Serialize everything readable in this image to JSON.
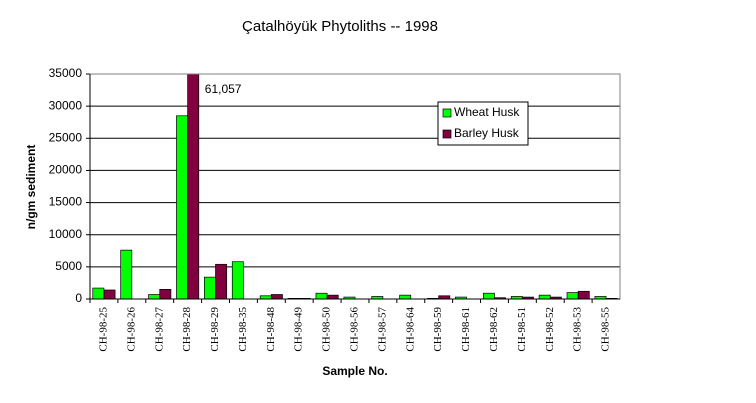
{
  "chart_data": {
    "type": "bar",
    "title": "Çatalhöyük Phytoliths -- 1998",
    "x_label": "Sample No.",
    "y_label": "n/gm sediment",
    "categories": [
      "CH-98-25",
      "CH-98-26",
      "CH-98-27",
      "CH-98-28",
      "CH-98-29",
      "CH-98-35",
      "CH-98-48",
      "CH-98-49",
      "CH-98-50",
      "CH-98-56",
      "CH-98-57",
      "CH-98-64",
      "CH-98-59",
      "CH-98-61",
      "CH-98-62",
      "CH-98-51",
      "CH-98-52",
      "CH-98-53",
      "CH-98-55"
    ],
    "series": [
      {
        "name": "Wheat Husk",
        "color": "#00ff00",
        "values": [
          1700,
          7600,
          700,
          28500,
          3400,
          5800,
          500,
          100,
          900,
          300,
          400,
          600,
          100,
          300,
          900,
          400,
          600,
          1000,
          400
        ]
      },
      {
        "name": "Barley Husk",
        "color": "#800040",
        "values": [
          1400,
          0,
          1500,
          61057,
          5400,
          0,
          700,
          100,
          600,
          0,
          0,
          0,
          500,
          0,
          200,
          300,
          300,
          1200,
          100
        ],
        "value_labels": [
          null,
          null,
          null,
          "61,057",
          null,
          null,
          null,
          null,
          null,
          null,
          null,
          null,
          null,
          null,
          null,
          null,
          null,
          null,
          null
        ]
      }
    ],
    "ylim": [
      0,
      35000
    ],
    "yticks": [
      0,
      5000,
      10000,
      15000,
      20000,
      25000,
      30000,
      35000
    ],
    "grid": true,
    "legend": "upper right"
  }
}
